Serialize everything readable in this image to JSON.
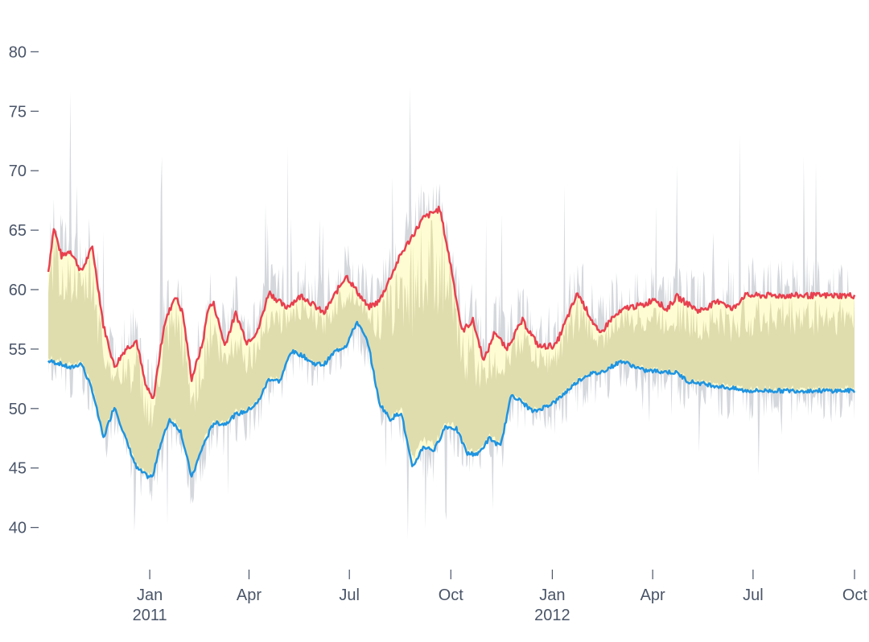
{
  "chart_data": {
    "type": "area",
    "title": "",
    "xlabel": "",
    "ylabel": "",
    "ylim": [
      37,
      83
    ],
    "yticks": [
      40,
      45,
      50,
      55,
      60,
      65,
      70,
      75,
      80
    ],
    "ytick_labels": [
      "40",
      "45",
      "50",
      "55",
      "60",
      "65",
      "70",
      "75",
      "80"
    ],
    "xlim": [
      "2010-10-01",
      "2012-10-01"
    ],
    "xticks": [
      {
        "date": "2011-01-01",
        "label": "Jan",
        "sublabel": "2011"
      },
      {
        "date": "2011-04-01",
        "label": "Apr",
        "sublabel": ""
      },
      {
        "date": "2011-07-01",
        "label": "Jul",
        "sublabel": ""
      },
      {
        "date": "2011-10-01",
        "label": "Oct",
        "sublabel": ""
      },
      {
        "date": "2012-01-01",
        "label": "Jan",
        "sublabel": "2012"
      },
      {
        "date": "2012-04-01",
        "label": "Apr",
        "sublabel": ""
      },
      {
        "date": "2012-07-01",
        "label": "Jul",
        "sublabel": ""
      },
      {
        "date": "2012-10-01",
        "label": "Oct",
        "sublabel": ""
      }
    ],
    "colors": {
      "upper": "#e8404f",
      "lower": "#1f94e0",
      "band": "#fefcd2",
      "raw": "#d4d7dc",
      "axis": "#4a5568"
    },
    "series": [
      {
        "name": "upper",
        "x_days": [
          0,
          5,
          12,
          20,
          30,
          40,
          50,
          60,
          70,
          80,
          88,
          95,
          105,
          115,
          122,
          130,
          140,
          145,
          150,
          160,
          170,
          180,
          190,
          200,
          215,
          230,
          250,
          270,
          290,
          300,
          320,
          340,
          355,
          365,
          375,
          385,
          395,
          405,
          415,
          430,
          445,
          460,
          480,
          500,
          510,
          525,
          540,
          550,
          560,
          570,
          590,
          610,
          620,
          631
        ],
        "values": [
          61.5,
          65.2,
          62.8,
          63.3,
          61.5,
          63.6,
          57,
          53.5,
          55,
          55.7,
          52,
          50.7,
          57,
          59.5,
          58,
          52.5,
          55.5,
          58.5,
          58.8,
          55.3,
          58,
          55.6,
          56.5,
          59.8,
          58.5,
          59.5,
          58,
          61.2,
          58.5,
          59,
          63,
          66,
          66.8,
          62,
          56.5,
          57.4,
          54,
          56.5,
          55,
          57.4,
          55.2,
          55.3,
          59.7,
          56.2,
          57.5,
          58.5,
          58.7,
          59.3,
          58.3,
          59.4,
          58.2,
          59.1,
          58.3,
          59.5
        ]
      },
      {
        "name": "lower",
        "x_days": [
          0,
          10,
          20,
          30,
          40,
          50,
          60,
          70,
          80,
          90,
          95,
          100,
          110,
          120,
          130,
          140,
          150,
          160,
          170,
          180,
          190,
          200,
          210,
          220,
          230,
          240,
          250,
          260,
          270,
          280,
          290,
          300,
          310,
          320,
          330,
          340,
          350,
          360,
          370,
          380,
          390,
          400,
          410,
          420,
          430,
          440,
          460,
          480,
          490,
          500,
          520,
          540,
          560,
          570,
          580,
          600,
          620,
          631
        ],
        "values": [
          54,
          53.8,
          53.4,
          53.8,
          51.5,
          47.5,
          50.2,
          47.5,
          45,
          44.3,
          44.3,
          46.5,
          49.1,
          48.1,
          44.2,
          46.8,
          48.8,
          48.7,
          49.5,
          49.8,
          50.5,
          52.5,
          52.3,
          54.8,
          54.5,
          53.8,
          53.7,
          54.8,
          55.3,
          57.3,
          55.5,
          50.5,
          49.1,
          49.7,
          45,
          46.8,
          46.5,
          48.5,
          48.3,
          46.2,
          46.2,
          47.5,
          46.8,
          51.2,
          50.5,
          49.7,
          50.6,
          52.3,
          52.9,
          53,
          54,
          53.2,
          53.1,
          53,
          52.3,
          52,
          51.7,
          51.5
        ]
      }
    ]
  }
}
